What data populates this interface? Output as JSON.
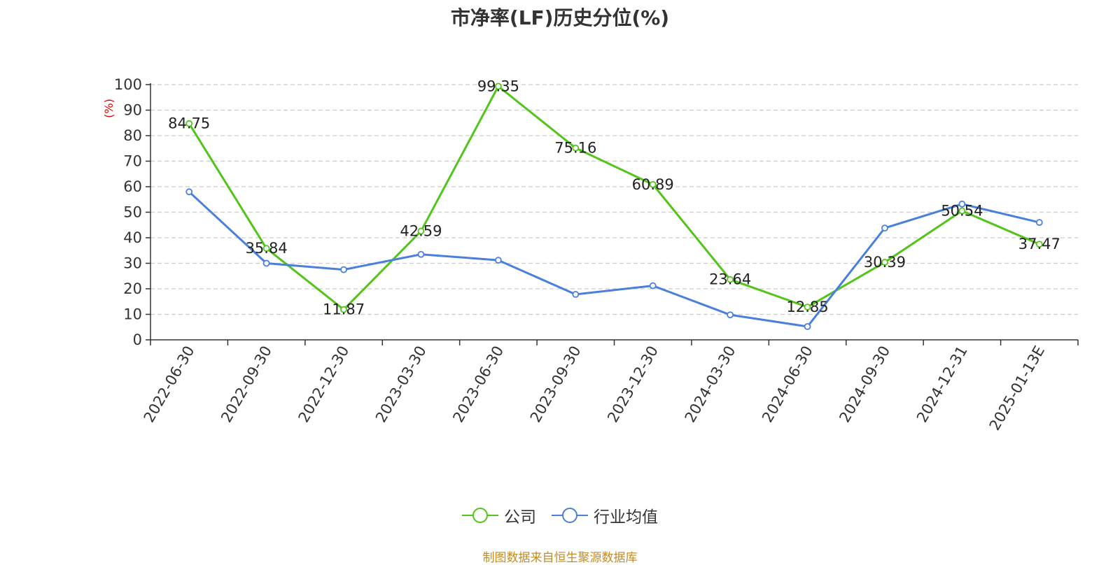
{
  "chart_data": {
    "type": "line",
    "title": "市净率(LF)历史分位(%)",
    "ylabel": "(%)",
    "ylim": [
      0,
      100
    ],
    "yticks": [
      0,
      10,
      20,
      30,
      40,
      50,
      60,
      70,
      80,
      90,
      100
    ],
    "categories": [
      "2022-06-30",
      "2022-09-30",
      "2022-12-30",
      "2023-03-30",
      "2023-06-30",
      "2023-09-30",
      "2023-12-30",
      "2024-03-30",
      "2024-06-30",
      "2024-09-30",
      "2024-12-31",
      "2025-01-13E"
    ],
    "series": [
      {
        "name": "公司",
        "color": "#52c41a",
        "show_labels": true,
        "values": [
          84.75,
          35.84,
          11.87,
          42.59,
          99.35,
          75.16,
          60.89,
          23.64,
          12.85,
          30.39,
          50.54,
          37.47
        ]
      },
      {
        "name": "行业均值",
        "color": "#4a7fdb",
        "show_labels": false,
        "values": [
          58,
          30,
          27.5,
          33.5,
          31.2,
          17.8,
          21.2,
          9.8,
          5.2,
          43.8,
          53.2,
          46
        ]
      }
    ],
    "grid": true,
    "legend_position": "bottom-center"
  },
  "source": "制图数据来自恒生聚源数据库"
}
